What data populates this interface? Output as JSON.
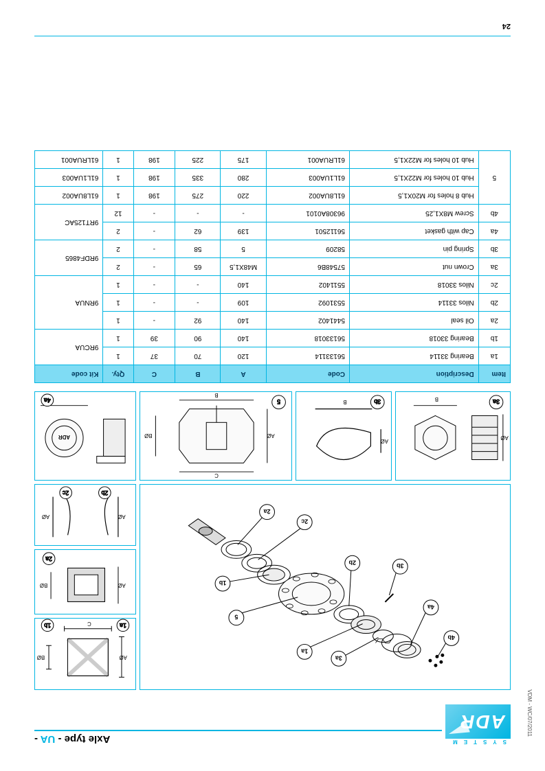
{
  "meta": {
    "side_label": "VDM - WC/07/2011",
    "page_number": "24"
  },
  "brand": {
    "system_word": "SYSTEM",
    "name": "ADR"
  },
  "title": {
    "prefix": "Axle type - ",
    "accent": "UA",
    "suffix": " -"
  },
  "diagram": {
    "callouts_main": [
      "4b",
      "4a",
      "3b",
      "3a",
      "2b",
      "1a",
      "2c",
      "2a",
      "5",
      "1b"
    ],
    "side_panels": {
      "p1": [
        "1a",
        "1b"
      ],
      "p2": [
        "2a"
      ],
      "p3": [
        "2b",
        "2c"
      ],
      "p3a": [
        "3a",
        "3b"
      ],
      "p5": [
        "5"
      ],
      "p4a": [
        "4a"
      ]
    },
    "dim_labels": [
      "AØ",
      "BØ",
      "C",
      "B"
    ]
  },
  "table": {
    "headers": [
      "Item",
      "Description",
      "Code",
      "A",
      "B",
      "C",
      "Qty.",
      "Kit code"
    ],
    "rows": [
      {
        "item": "1a",
        "desc": "Bearing 33114",
        "code": "56133114",
        "a": "120",
        "b": "70",
        "c": "37",
        "qty": "1",
        "kit": "9RCUA",
        "kitspan": 2
      },
      {
        "item": "1b",
        "desc": "Bearing 33018",
        "code": "56133018",
        "a": "140",
        "b": "90",
        "c": "39",
        "qty": "1"
      },
      {
        "item": "2a",
        "desc": "Oil seal",
        "code": "5441402",
        "a": "140",
        "b": "92",
        "c": "-",
        "qty": "1",
        "kit": "9RNUA",
        "kitspan": 3
      },
      {
        "item": "2b",
        "desc": "Nilos 33114",
        "code": "5531092",
        "a": "109",
        "b": "-",
        "c": "-",
        "qty": "1"
      },
      {
        "item": "2c",
        "desc": "Nilos 33018",
        "code": "5511402",
        "a": "140",
        "b": "-",
        "c": "-",
        "qty": "1"
      },
      {
        "item": "3a",
        "desc": "Crown nut",
        "code": "57548B6",
        "a": "M48X1,5",
        "b": "65",
        "c": "-",
        "qty": "2",
        "kit": "9RDF4865",
        "kitspan": 2
      },
      {
        "item": "3b",
        "desc": "Spring pin",
        "code": "58209",
        "a": "5",
        "b": "58",
        "c": "-",
        "qty": "2"
      },
      {
        "item": "4a",
        "desc": "Cap with gasket",
        "code": "56112501",
        "a": "139",
        "b": "62",
        "c": "-",
        "qty": "2",
        "kit": "9RT125AC",
        "kitspan": 2
      },
      {
        "item": "4b",
        "desc": "Screw M8X1,25",
        "code": "96308A0101",
        "a": "-",
        "b": "-",
        "c": "-",
        "qty": "12"
      },
      {
        "item": "",
        "desc": "Hub 8 holes for M20X1,5",
        "code": "61L8UA002",
        "a": "220",
        "b": "275",
        "c": "198",
        "qty": "1",
        "kit": "61L8UA002",
        "kitspan": 1,
        "itemspan": 3,
        "itemval": "5"
      },
      {
        "item": "",
        "desc": "Hub 10 holes for M22X1,5",
        "code": "61L1UA003",
        "a": "280",
        "b": "335",
        "c": "198",
        "qty": "1",
        "kit": "61L1UA003",
        "kitspan": 1
      },
      {
        "item": "",
        "desc": "Hub 10 holes for M22X1,5",
        "code": "61LRUA001",
        "a": "175",
        "b": "225",
        "c": "198",
        "qty": "1",
        "kit": "61LRUA001",
        "kitspan": 1
      }
    ]
  },
  "colors": {
    "accent": "#00b5e2",
    "header_bg": "#7fdcf4"
  }
}
